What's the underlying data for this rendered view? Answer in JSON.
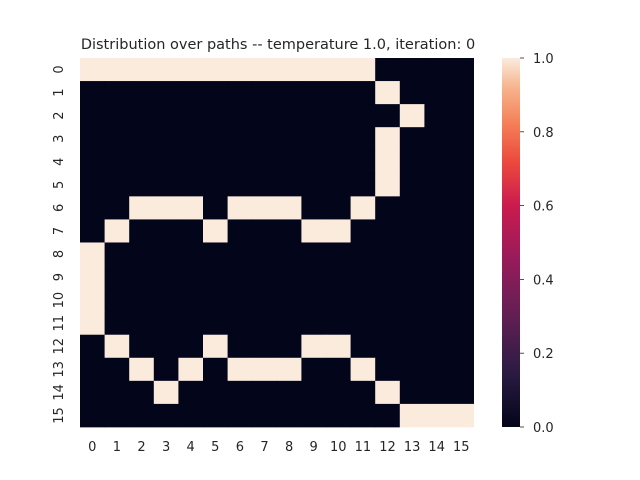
{
  "chart_data": {
    "type": "heatmap",
    "title": "Distribution over paths -- temperature 1.0, iteration: 0",
    "xlabel": "",
    "ylabel": "",
    "x_tick_labels": [
      "0",
      "1",
      "2",
      "3",
      "4",
      "5",
      "6",
      "7",
      "8",
      "9",
      "10",
      "11",
      "12",
      "13",
      "14",
      "15"
    ],
    "y_tick_labels": [
      "0",
      "1",
      "2",
      "3",
      "4",
      "5",
      "6",
      "7",
      "8",
      "9",
      "10",
      "11",
      "12",
      "13",
      "14",
      "15"
    ],
    "colorbar": {
      "min": 0.0,
      "max": 1.0,
      "ticks": [
        "0.0",
        "0.2",
        "0.4",
        "0.6",
        "0.8",
        "1.0"
      ],
      "colormap": "rocket"
    },
    "values": [
      [
        1,
        1,
        1,
        1,
        1,
        1,
        1,
        1,
        1,
        1,
        1,
        1,
        0,
        0,
        0,
        0
      ],
      [
        0,
        0,
        0,
        0,
        0,
        0,
        0,
        0,
        0,
        0,
        0,
        0,
        1,
        0,
        0,
        0
      ],
      [
        0,
        0,
        0,
        0,
        0,
        0,
        0,
        0,
        0,
        0,
        0,
        0,
        0,
        1,
        0,
        0
      ],
      [
        0,
        0,
        0,
        0,
        0,
        0,
        0,
        0,
        0,
        0,
        0,
        0,
        1,
        0,
        0,
        0
      ],
      [
        0,
        0,
        0,
        0,
        0,
        0,
        0,
        0,
        0,
        0,
        0,
        0,
        1,
        0,
        0,
        0
      ],
      [
        0,
        0,
        0,
        0,
        0,
        0,
        0,
        0,
        0,
        0,
        0,
        0,
        1,
        0,
        0,
        0
      ],
      [
        0,
        0,
        1,
        1,
        1,
        0,
        1,
        1,
        1,
        0,
        0,
        1,
        0,
        0,
        0,
        0
      ],
      [
        0,
        1,
        0,
        0,
        0,
        1,
        0,
        0,
        0,
        1,
        1,
        0,
        0,
        0,
        0,
        0
      ],
      [
        1,
        0,
        0,
        0,
        0,
        0,
        0,
        0,
        0,
        0,
        0,
        0,
        0,
        0,
        0,
        0
      ],
      [
        1,
        0,
        0,
        0,
        0,
        0,
        0,
        0,
        0,
        0,
        0,
        0,
        0,
        0,
        0,
        0
      ],
      [
        1,
        0,
        0,
        0,
        0,
        0,
        0,
        0,
        0,
        0,
        0,
        0,
        0,
        0,
        0,
        0
      ],
      [
        1,
        0,
        0,
        0,
        0,
        0,
        0,
        0,
        0,
        0,
        0,
        0,
        0,
        0,
        0,
        0
      ],
      [
        0,
        1,
        0,
        0,
        0,
        1,
        0,
        0,
        0,
        1,
        1,
        0,
        0,
        0,
        0,
        0
      ],
      [
        0,
        0,
        1,
        0,
        1,
        0,
        1,
        1,
        1,
        0,
        0,
        1,
        0,
        0,
        0,
        0
      ],
      [
        0,
        0,
        0,
        1,
        0,
        0,
        0,
        0,
        0,
        0,
        0,
        0,
        1,
        0,
        0,
        0
      ],
      [
        0,
        0,
        0,
        0,
        0,
        0,
        0,
        0,
        0,
        0,
        0,
        0,
        0,
        1,
        1,
        1
      ]
    ]
  }
}
